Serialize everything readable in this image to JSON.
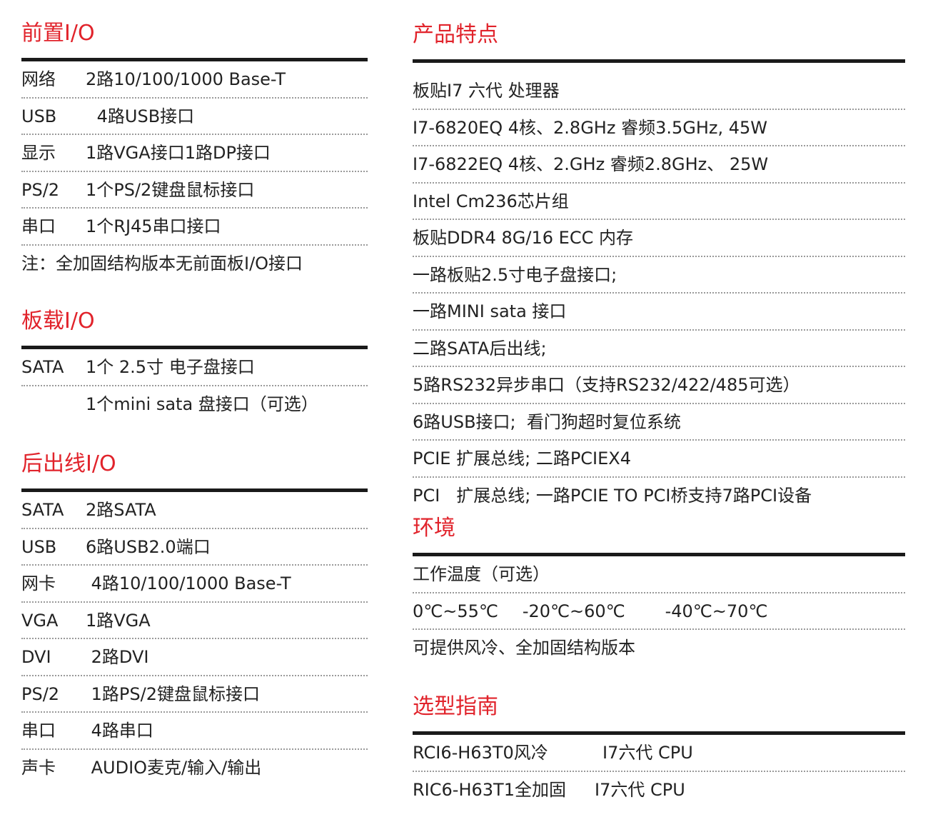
{
  "front_io": {
    "title": "前置I/O",
    "rows": [
      {
        "label": "网络",
        "value": "2路10/100/1000 Base-T"
      },
      {
        "label": "USB",
        "value": " 4路USB接口"
      },
      {
        "label": "显示",
        "value": "1路VGA接口1路DP接口"
      },
      {
        "label": "PS/2",
        "value": "1个PS/2键盘鼠标接口"
      },
      {
        "label": "串口",
        "value": "1个RJ45串口接口"
      }
    ],
    "note": "注：全加固结构版本无前面板I/O接口"
  },
  "onboard_io": {
    "title": "板载I/O",
    "rows": [
      {
        "label": "SATA",
        "value": "1个 2.5寸 电子盘接口"
      },
      {
        "label": "",
        "value": "1个mini sata 盘接口（可选）"
      }
    ]
  },
  "rear_io": {
    "title": "后出线I/O",
    "rows": [
      {
        "label": "SATA",
        "value": "2路SATA"
      },
      {
        "label": "USB",
        "value": "6路USB2.0端口"
      },
      {
        "label": "网卡",
        "value": " 4路10/100/1000 Base-T"
      },
      {
        "label": "VGA",
        "value": "1路VGA"
      },
      {
        "label": "DVI",
        "value": " 2路DVI"
      },
      {
        "label": "PS/2",
        "value": " 1路PS/2键盘鼠标接口"
      },
      {
        "label": "串口",
        "value": " 4路串口"
      },
      {
        "label": "声卡",
        "value": " AUDIO麦克/输入/输出"
      }
    ]
  },
  "features": {
    "title": "产品特点",
    "items": [
      "板贴I7 六代 处理器",
      "I7-6820EQ 4核、2.8GHz 睿频3.5GHz, 45W",
      "I7-6822EQ 4核、2.GHz 睿频2.8GHz、 25W",
      "Intel Cm236芯片组",
      "板贴DDR4 8G/16 ECC 内存",
      "一路板贴2.5寸电子盘接口;",
      "一路MINI sata 接口",
      "二路SATA后出线;",
      "5路RS232异步串口（支持RS232/422/485可选）",
      "6路USB接口;  看门狗超时复位系统",
      "PCIE 扩展总线; 二路PCIEX4",
      "PCI   扩展总线; 一路PCIE TO PCI桥支持7路PCI设备"
    ]
  },
  "environment": {
    "title": "环境",
    "temp_label": "工作温度（可选）",
    "temps": [
      "0℃~55℃",
      "-20℃~60℃",
      "-40℃~70℃"
    ],
    "cooling": "可提供风冷、全加固结构版本"
  },
  "selection": {
    "title": "选型指南",
    "models": [
      {
        "model": "RCI6-H63T0风冷",
        "cpu": "I7六代 CPU"
      },
      {
        "model": "RIC6-H63T1全加固",
        "cpu": "I7六代 CPU"
      }
    ]
  },
  "colors": {
    "accent": "#e1232b",
    "rule": "#1a1a1a"
  }
}
